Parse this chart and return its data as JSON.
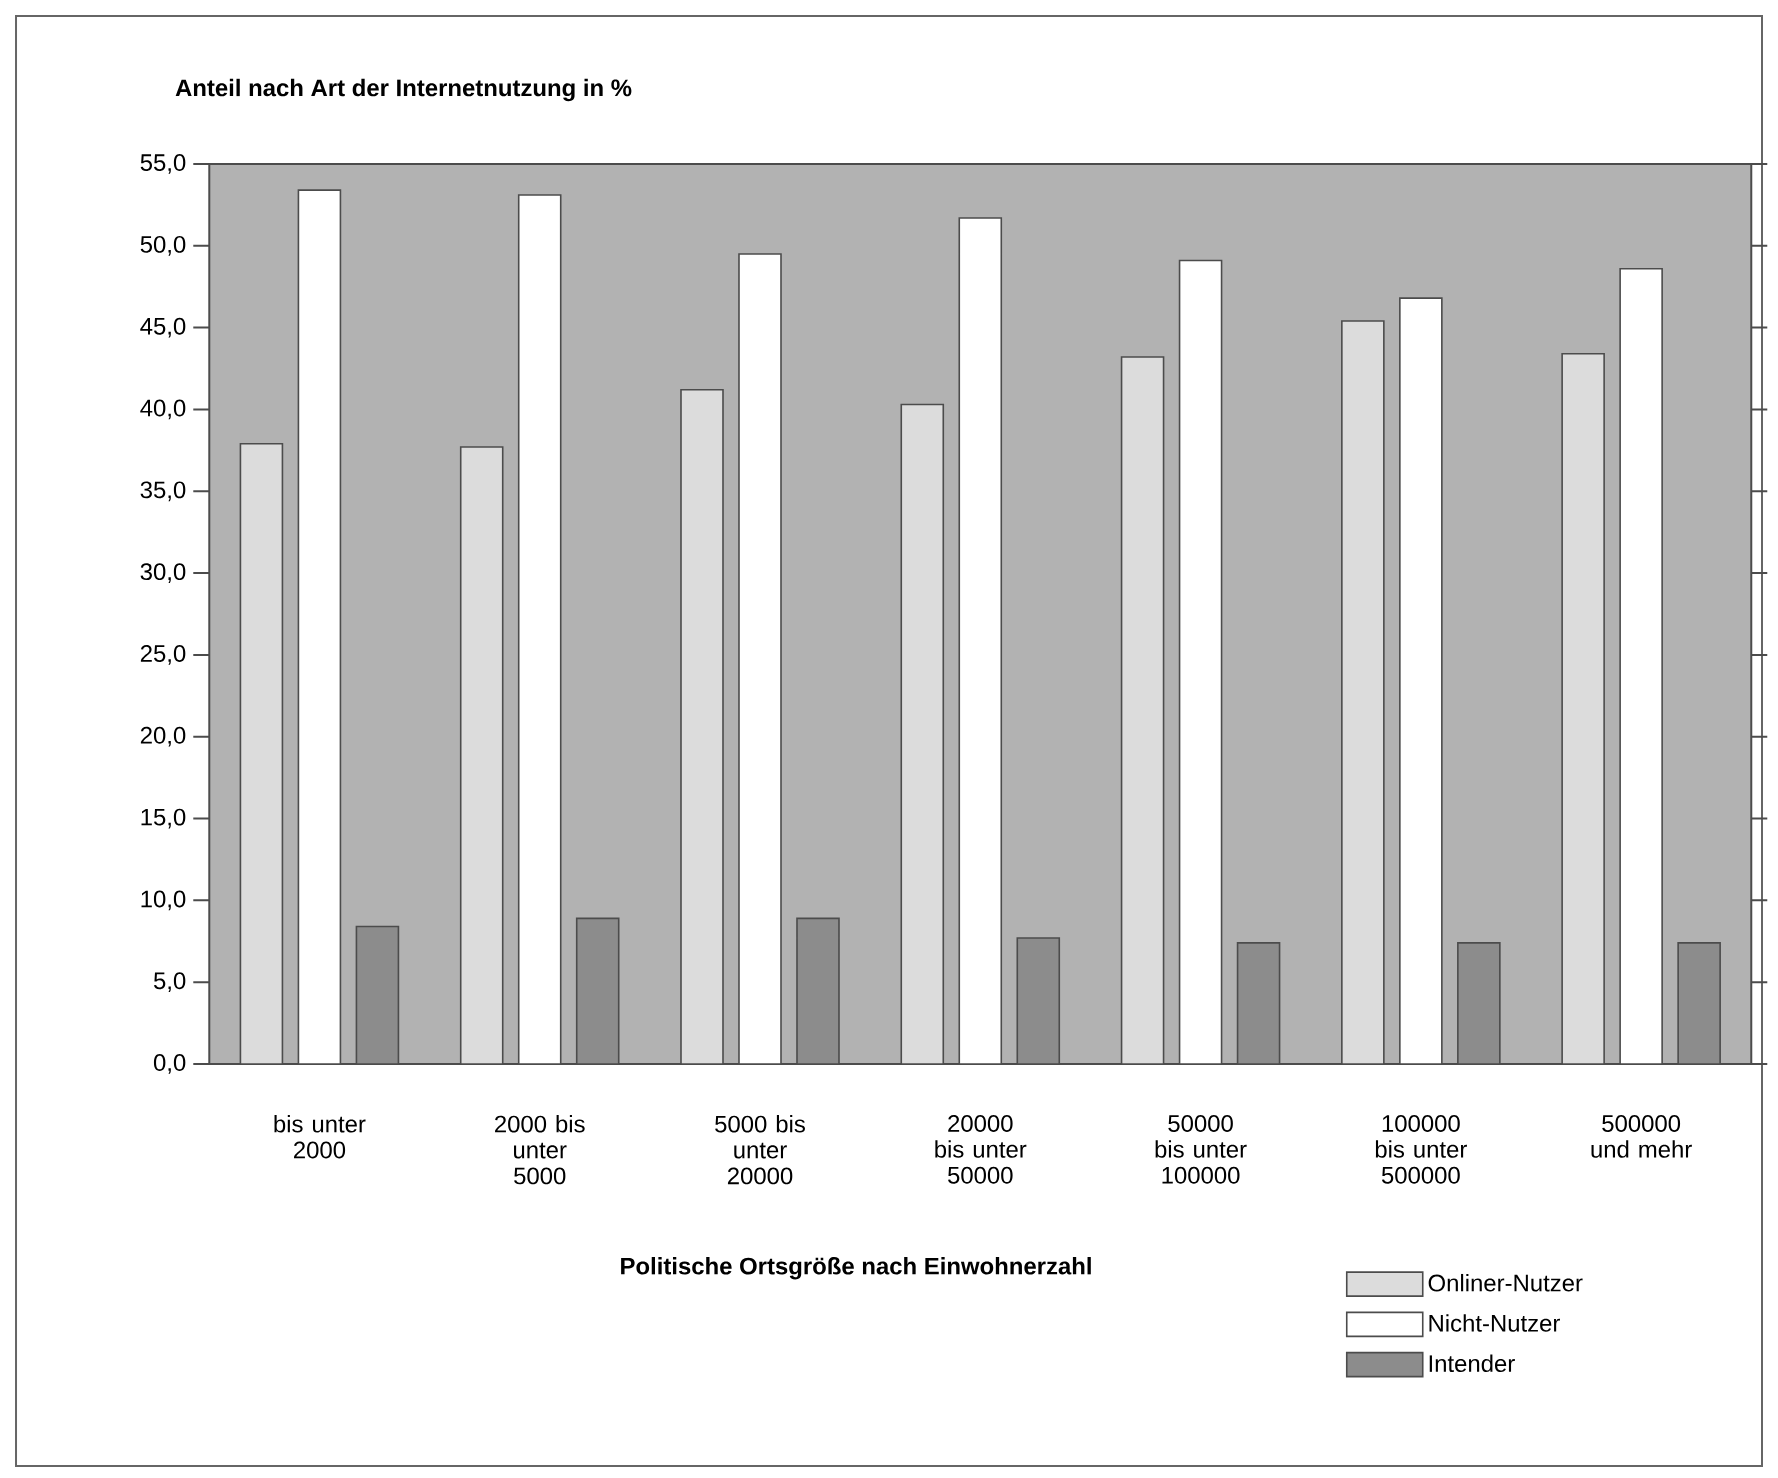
{
  "chart_data": {
    "type": "bar",
    "ylabel": "Anteil nach Art der Internetnutzung in %",
    "xlabel": "Politische Ortsgröße nach Einwohnerzahl",
    "categories": [
      "bis unter 2000",
      "2000 bis unter 5000",
      "5000 bis unter 20000",
      "20000 bis unter 50000",
      "50000 bis unter 100000",
      "100000 bis unter 500000",
      "500000 und mehr"
    ],
    "series": [
      {
        "name": "Onliner-Nutzer",
        "color": "#dcdcdc",
        "values": [
          37.9,
          37.7,
          41.2,
          40.3,
          43.2,
          45.4,
          43.4
        ]
      },
      {
        "name": "Nicht-Nutzer",
        "color": "#ffffff",
        "values": [
          53.4,
          53.1,
          49.5,
          51.7,
          49.1,
          46.8,
          48.6
        ]
      },
      {
        "name": "Intender",
        "color": "#8c8c8c",
        "values": [
          8.4,
          8.9,
          8.9,
          7.7,
          7.4,
          7.4,
          7.4
        ]
      }
    ],
    "ylim": [
      0,
      55
    ],
    "yticks": [
      {
        "value": 0,
        "label": "0,0"
      },
      {
        "value": 5,
        "label": "5,0"
      },
      {
        "value": 10,
        "label": "10,0"
      },
      {
        "value": 15,
        "label": "15,0"
      },
      {
        "value": 20,
        "label": "20,0"
      },
      {
        "value": 25,
        "label": "25,0"
      },
      {
        "value": 30,
        "label": "30,0"
      },
      {
        "value": 35,
        "label": "35,0"
      },
      {
        "value": 40,
        "label": "40,0"
      },
      {
        "value": 45,
        "label": "45,0"
      },
      {
        "value": 50,
        "label": "50,0"
      },
      {
        "value": 55,
        "label": "55,0"
      }
    ],
    "legend": "bottom right",
    "grid": false
  }
}
